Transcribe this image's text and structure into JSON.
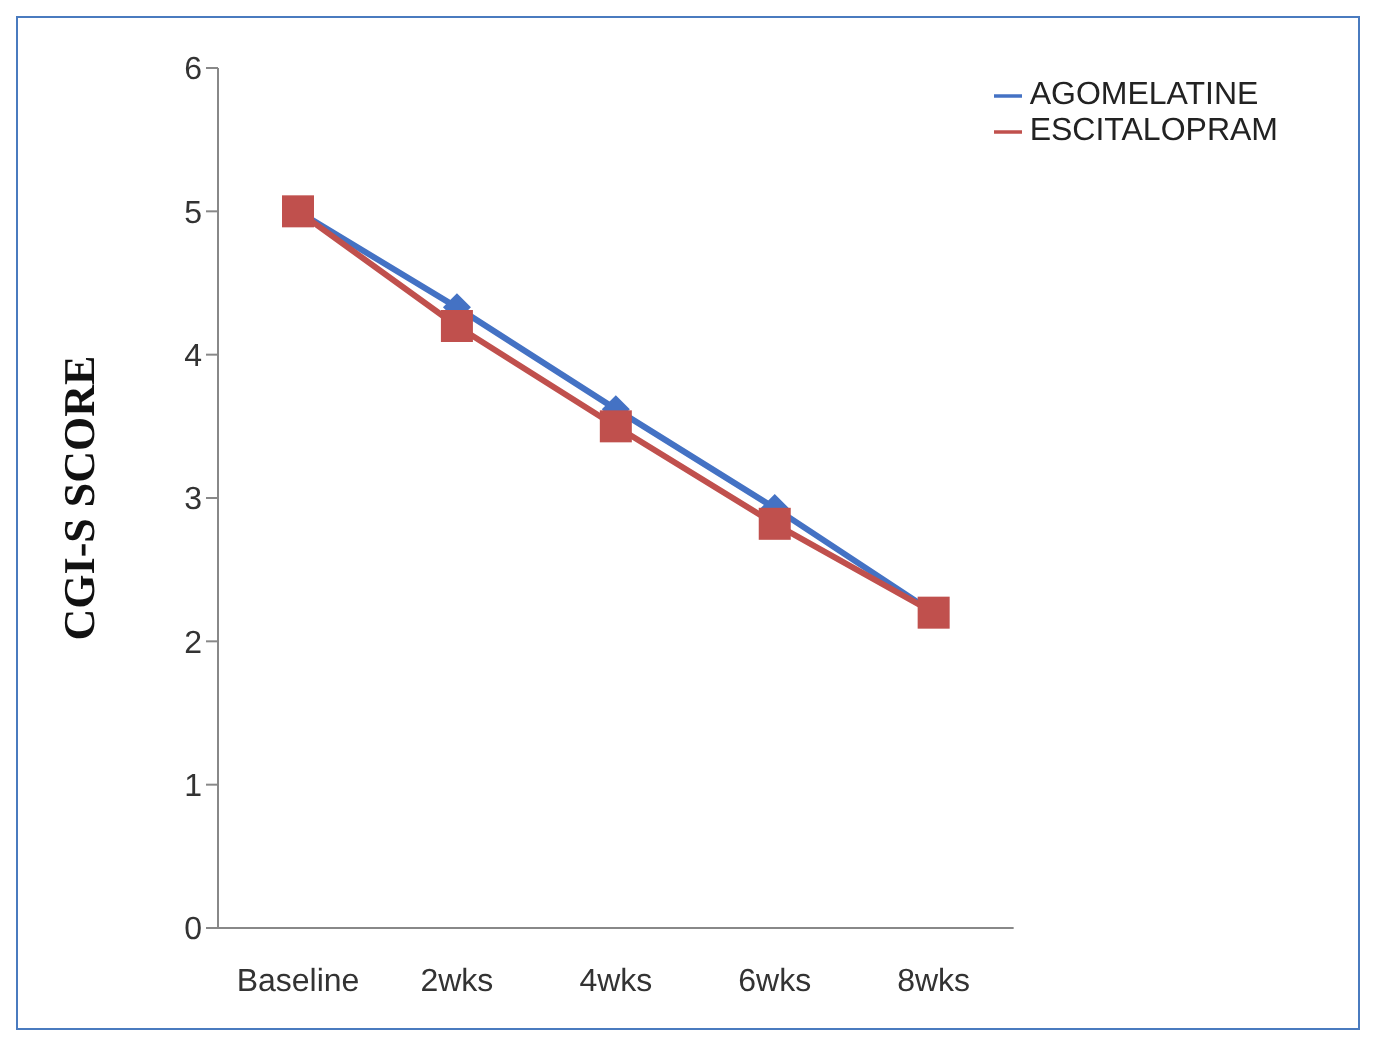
{
  "chart_data": {
    "type": "line",
    "ylabel": "CGI-S SCORE",
    "categories": [
      "Baseline",
      "2wks",
      "4wks",
      "6wks",
      "8wks"
    ],
    "series": [
      {
        "name": "AGOMELATINE",
        "color": "#4472c4",
        "marker": "diamond",
        "values": [
          5,
          4.33,
          3.62,
          2.93,
          2.2
        ]
      },
      {
        "name": "ESCITALOPRAM",
        "color": "#c0504d",
        "marker": "square",
        "values": [
          5,
          4.2,
          3.5,
          2.82,
          2.2
        ]
      }
    ],
    "ylim": [
      0,
      6
    ],
    "yticks": [
      0,
      1,
      2,
      3,
      4,
      5,
      6
    ],
    "legend": "top right"
  }
}
